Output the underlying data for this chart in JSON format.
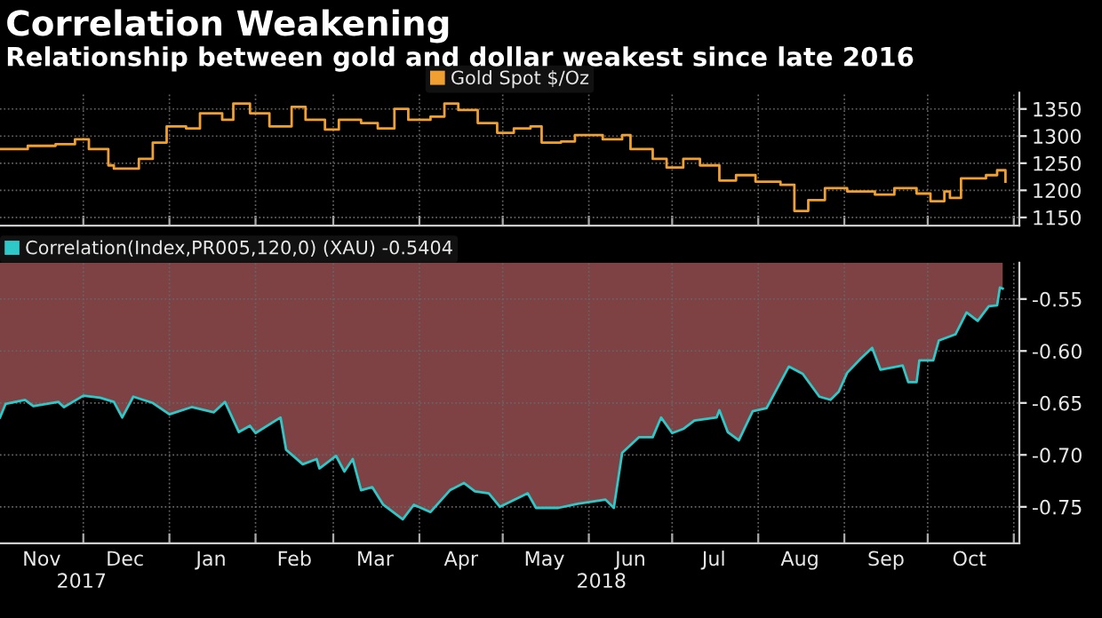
{
  "chart_data": [
    {
      "type": "step",
      "title": "Correlation Weakening",
      "subtitle": "Relationship between gold and dollar weakest since late 2016",
      "x": [
        "2017-11-01",
        "2017-11-11",
        "2017-11-21",
        "2017-11-28",
        "2017-12-03",
        "2017-12-10",
        "2017-12-12",
        "2017-12-21",
        "2017-12-26",
        "2017-12-31",
        "2018-01-07",
        "2018-01-12",
        "2018-01-20",
        "2018-01-24",
        "2018-01-30",
        "2018-02-06",
        "2018-02-14",
        "2018-02-19",
        "2018-02-26",
        "2018-03-03",
        "2018-03-11",
        "2018-03-17",
        "2018-03-23",
        "2018-03-28",
        "2018-04-05",
        "2018-04-10",
        "2018-04-15",
        "2018-04-22",
        "2018-04-29",
        "2018-05-05",
        "2018-05-11",
        "2018-05-15",
        "2018-05-22",
        "2018-05-27",
        "2018-06-06",
        "2018-06-13",
        "2018-06-16",
        "2018-06-24",
        "2018-06-29",
        "2018-07-05",
        "2018-07-11",
        "2018-07-18",
        "2018-07-24",
        "2018-07-31",
        "2018-08-09",
        "2018-08-14",
        "2018-08-19",
        "2018-08-25",
        "2018-09-02",
        "2018-09-12",
        "2018-09-19",
        "2018-09-27",
        "2018-10-02",
        "2018-10-07",
        "2018-10-09",
        "2018-10-13",
        "2018-10-22",
        "2018-10-26",
        "2018-10-29"
      ],
      "series": [
        {
          "name": "Gold Spot $/Oz",
          "color": "#f0a030",
          "values": [
            1276,
            1282,
            1285,
            1294,
            1276,
            1246,
            1240,
            1258,
            1288,
            1318,
            1314,
            1342,
            1330,
            1360,
            1342,
            1318,
            1354,
            1330,
            1312,
            1330,
            1324,
            1314,
            1350,
            1330,
            1336,
            1360,
            1348,
            1324,
            1306,
            1314,
            1318,
            1288,
            1290,
            1302,
            1294,
            1302,
            1276,
            1258,
            1242,
            1258,
            1246,
            1218,
            1228,
            1216,
            1210,
            1162,
            1182,
            1204,
            1198,
            1192,
            1204,
            1194,
            1180,
            1198,
            1186,
            1222,
            1228,
            1237,
            1216
          ]
        }
      ],
      "xlim": [
        "2017-11-01",
        "2018-11-03"
      ],
      "ylim": [
        1135,
        1380
      ],
      "yticks": [
        1150,
        1200,
        1250,
        1300,
        1350
      ],
      "xticks": [
        {
          "value": "2017-12-01",
          "label": null
        },
        {
          "value": "2018-01-01",
          "label": null
        },
        {
          "value": "2018-02-01",
          "label": null
        },
        {
          "value": "2018-03-01",
          "label": null
        },
        {
          "value": "2018-04-01",
          "label": null
        },
        {
          "value": "2018-05-01",
          "label": null
        },
        {
          "value": "2018-06-01",
          "label": null
        },
        {
          "value": "2018-07-01",
          "label": null
        },
        {
          "value": "2018-08-01",
          "label": null
        },
        {
          "value": "2018-09-01",
          "label": null
        },
        {
          "value": "2018-10-01",
          "label": null
        },
        {
          "value": "2018-11-01",
          "label": null
        }
      ],
      "tick_labels": "y",
      "grid": true,
      "legend": "top",
      "line_style": "solid"
    },
    {
      "type": "area",
      "x": [
        "2017-11-01",
        "2017-11-03",
        "2017-11-10",
        "2017-11-13",
        "2017-11-22",
        "2017-11-24",
        "2017-12-01",
        "2017-12-07",
        "2017-12-12",
        "2017-12-15",
        "2017-12-19",
        "2017-12-26",
        "2018-01-01",
        "2018-01-09",
        "2018-01-17",
        "2018-01-21",
        "2018-01-26",
        "2018-01-30",
        "2018-02-01",
        "2018-02-10",
        "2018-02-12",
        "2018-02-18",
        "2018-02-23",
        "2018-02-24",
        "2018-03-02",
        "2018-03-05",
        "2018-03-08",
        "2018-03-11",
        "2018-03-15",
        "2018-03-19",
        "2018-03-26",
        "2018-03-30",
        "2018-04-05",
        "2018-04-12",
        "2018-04-17",
        "2018-04-21",
        "2018-04-26",
        "2018-04-30",
        "2018-05-10",
        "2018-05-13",
        "2018-05-21",
        "2018-05-28",
        "2018-06-07",
        "2018-06-10",
        "2018-06-13",
        "2018-06-19",
        "2018-06-24",
        "2018-06-27",
        "2018-07-01",
        "2018-07-05",
        "2018-07-09",
        "2018-07-17",
        "2018-07-18",
        "2018-07-21",
        "2018-07-25",
        "2018-07-30",
        "2018-08-04",
        "2018-08-12",
        "2018-08-17",
        "2018-08-23",
        "2018-08-27",
        "2018-08-30",
        "2018-09-02",
        "2018-09-07",
        "2018-09-11",
        "2018-09-14",
        "2018-09-22",
        "2018-09-24",
        "2018-09-27",
        "2018-09-28",
        "2018-10-03",
        "2018-10-05",
        "2018-10-11",
        "2018-10-15",
        "2018-10-19",
        "2018-10-23",
        "2018-10-26",
        "2018-10-27",
        "2018-10-28"
      ],
      "series": [
        {
          "type": "area",
          "color": "#7e4244",
          "values": [
            -0.664,
            -0.651,
            -0.647,
            -0.653,
            -0.649,
            -0.654,
            -0.643,
            -0.645,
            -0.649,
            -0.664,
            -0.644,
            -0.65,
            -0.661,
            -0.654,
            -0.659,
            -0.649,
            -0.678,
            -0.672,
            -0.679,
            -0.664,
            -0.695,
            -0.709,
            -0.704,
            -0.713,
            -0.701,
            -0.716,
            -0.704,
            -0.734,
            -0.731,
            -0.748,
            -0.762,
            -0.748,
            -0.755,
            -0.734,
            -0.727,
            -0.735,
            -0.737,
            -0.75,
            -0.737,
            -0.751,
            -0.751,
            -0.747,
            -0.743,
            -0.751,
            -0.698,
            -0.683,
            -0.683,
            -0.664,
            -0.679,
            -0.675,
            -0.667,
            -0.664,
            -0.657,
            -0.678,
            -0.686,
            -0.658,
            -0.655,
            -0.615,
            -0.622,
            -0.644,
            -0.647,
            -0.639,
            -0.621,
            -0.607,
            -0.597,
            -0.618,
            -0.614,
            -0.63,
            -0.63,
            -0.609,
            -0.609,
            -0.59,
            -0.584,
            -0.563,
            -0.571,
            -0.557,
            -0.556,
            -0.539,
            -0.54
          ]
        },
        {
          "type": "line",
          "name": "Correlation(Index,PR005,120,0) (XAU) -0.5404",
          "color": "#2ec8c8",
          "values": [
            -0.664,
            -0.651,
            -0.647,
            -0.653,
            -0.649,
            -0.654,
            -0.643,
            -0.645,
            -0.649,
            -0.664,
            -0.644,
            -0.65,
            -0.661,
            -0.654,
            -0.659,
            -0.649,
            -0.678,
            -0.672,
            -0.679,
            -0.664,
            -0.695,
            -0.709,
            -0.704,
            -0.713,
            -0.701,
            -0.716,
            -0.704,
            -0.734,
            -0.731,
            -0.748,
            -0.762,
            -0.748,
            -0.755,
            -0.734,
            -0.727,
            -0.735,
            -0.737,
            -0.75,
            -0.737,
            -0.751,
            -0.751,
            -0.747,
            -0.743,
            -0.751,
            -0.698,
            -0.683,
            -0.683,
            -0.664,
            -0.679,
            -0.675,
            -0.667,
            -0.664,
            -0.657,
            -0.678,
            -0.686,
            -0.658,
            -0.655,
            -0.615,
            -0.622,
            -0.644,
            -0.647,
            -0.639,
            -0.621,
            -0.607,
            -0.597,
            -0.618,
            -0.614,
            -0.63,
            -0.63,
            -0.609,
            -0.609,
            -0.59,
            -0.584,
            -0.563,
            -0.571,
            -0.557,
            -0.556,
            -0.539,
            -0.54
          ]
        }
      ],
      "xlim": [
        "2017-11-01",
        "2018-11-03"
      ],
      "ylim": [
        -0.785,
        -0.515
      ],
      "yticks": [
        {
          "value": -0.75,
          "label": "-0.75"
        },
        {
          "value": -0.7,
          "label": "-0.70"
        },
        {
          "value": -0.65,
          "label": "-0.65"
        },
        {
          "value": -0.6,
          "label": "-0.60"
        },
        {
          "value": -0.55,
          "label": "-0.55"
        }
      ],
      "xticks": [
        {
          "value": "2017-11-16",
          "label": "Nov"
        },
        {
          "value": "2017-12-01",
          "label": null
        },
        {
          "value": "2017-12-16",
          "label": "Dec"
        },
        {
          "value": "2018-01-01",
          "label": null
        },
        {
          "value": "2018-01-16",
          "label": "Jan"
        },
        {
          "value": "2018-02-01",
          "label": null
        },
        {
          "value": "2018-02-15",
          "label": "Feb"
        },
        {
          "value": "2018-03-01",
          "label": null
        },
        {
          "value": "2018-03-16",
          "label": "Mar"
        },
        {
          "value": "2018-04-01",
          "label": null
        },
        {
          "value": "2018-04-16",
          "label": "Apr"
        },
        {
          "value": "2018-05-01",
          "label": null
        },
        {
          "value": "2018-05-16",
          "label": "May"
        },
        {
          "value": "2018-06-01",
          "label": null
        },
        {
          "value": "2018-06-16",
          "label": "Jun"
        },
        {
          "value": "2018-07-01",
          "label": null
        },
        {
          "value": "2018-07-16",
          "label": "Jul"
        },
        {
          "value": "2018-08-01",
          "label": null
        },
        {
          "value": "2018-08-16",
          "label": "Aug"
        },
        {
          "value": "2018-09-01",
          "label": null
        },
        {
          "value": "2018-09-16",
          "label": "Sep"
        },
        {
          "value": "2018-10-01",
          "label": null
        },
        {
          "value": "2018-10-16",
          "label": "Oct"
        },
        {
          "value": "2018-11-01",
          "label": null
        }
      ],
      "annotations": [
        "2017",
        "2018"
      ],
      "grid": true,
      "legend": "top left",
      "line_style": "solid"
    }
  ]
}
